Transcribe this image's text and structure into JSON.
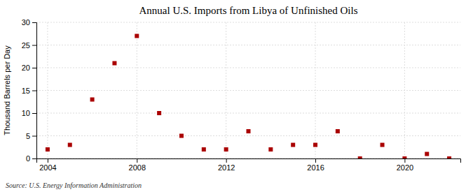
{
  "chart_data": {
    "type": "scatter",
    "title": "Annual U.S. Imports from Libya of Unfinished Oils",
    "ylabel": "Thousand Barrels per Day",
    "source": "Source: U.S. Energy Information Administration",
    "x": [
      2004,
      2005,
      2006,
      2007,
      2008,
      2009,
      2010,
      2011,
      2012,
      2013,
      2014,
      2015,
      2016,
      2017,
      2018,
      2019,
      2020,
      2021,
      2022
    ],
    "values": [
      2,
      3,
      13,
      21,
      27,
      10,
      5,
      2,
      2,
      6,
      2,
      3,
      3,
      6,
      0,
      3,
      0,
      1,
      0
    ],
    "color": "#aa0000",
    "marker": "square",
    "xlim": [
      2003.5,
      2022.5
    ],
    "xticks": [
      2004,
      2008,
      2012,
      2016,
      2020
    ],
    "ylim": [
      0,
      30
    ],
    "yticks": [
      0,
      5,
      10,
      15,
      20,
      25,
      30
    ],
    "grid": true
  }
}
